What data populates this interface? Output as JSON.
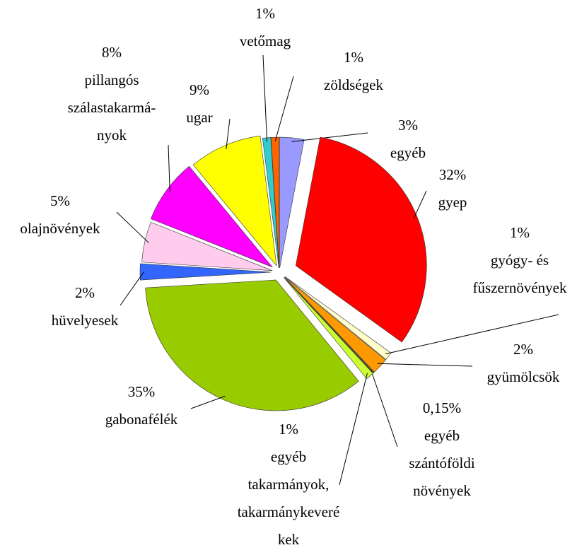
{
  "chart_data": {
    "type": "pie",
    "categories": [
      "egyéb",
      "gyep",
      "gyógy- és\nfűszernövények",
      "gyümölcsök",
      "egyéb\nszántóföldi\nnövények",
      "egyéb\ntakarmányok,\ntakarmánykeveré\nkek",
      "gabonafélék",
      "hüvelyesek",
      "olajnövények",
      "pillangós\nszálastakarmá-\nnyok",
      "ugar",
      "vetőmag",
      "zöldségek"
    ],
    "values": [
      3,
      32,
      1,
      2,
      0.15,
      1,
      35,
      2,
      5,
      8,
      9,
      1,
      1
    ],
    "value_labels": [
      "3%",
      "32%",
      "1%",
      "2%",
      "0,15%",
      "1%",
      "35%",
      "2%",
      "5%",
      "8%",
      "9%",
      "1%",
      "1%"
    ],
    "colors": [
      "#9999ff",
      "#ff0000",
      "#ffffcc",
      "#ff9900",
      "#666600",
      "#ccff33",
      "#99cc00",
      "#3366ff",
      "#ffccee",
      "#ff00ff",
      "#ffff00",
      "#33cccc",
      "#ff6600"
    ]
  }
}
